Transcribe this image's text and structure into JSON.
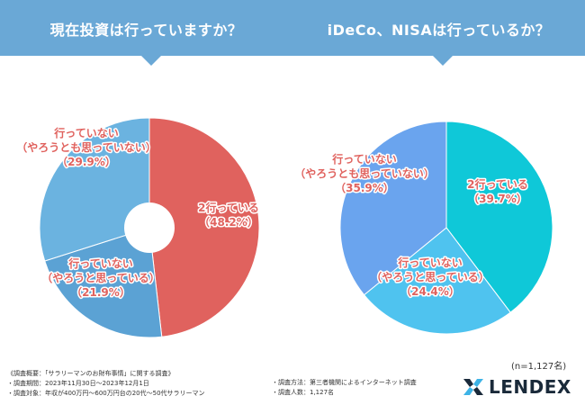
{
  "chart_data": [
    {
      "type": "pie",
      "title": "現在投資は行っていますか？",
      "donut": true,
      "slices": [
        {
          "label_lines": [
            "2行っている",
            "（48.2%）"
          ],
          "value": 48.2,
          "color": "#e0625e"
        },
        {
          "label_lines": [
            "行っていない",
            "（やろうと思っている）",
            "（21.9%）"
          ],
          "value": 21.9,
          "color": "#5ba2d4"
        },
        {
          "label_lines": [
            "行っていない",
            "（やろうとも思っていない）",
            "（29.9%）"
          ],
          "value": 29.9,
          "color": "#6bb3e0"
        }
      ]
    },
    {
      "type": "pie",
      "title": "iDeCo、NISAは行っているか？",
      "donut": false,
      "slices": [
        {
          "label_lines": [
            "2行っている",
            "（39.7%）"
          ],
          "value": 39.7,
          "color": "#0fc8d8"
        },
        {
          "label_lines": [
            "行っていない",
            "（やろうと思っている）",
            "（24.4%）"
          ],
          "value": 24.4,
          "color": "#4fc3ef"
        },
        {
          "label_lines": [
            "行っていない",
            "（やろうとも思っていない）",
            "（35.9%）"
          ],
          "value": 35.9,
          "color": "#6aa4ee"
        }
      ]
    }
  ],
  "label_color": "#e0625e",
  "sample_size": "(n=1,127名)",
  "notes_left": [
    "《調査概要：「サラリーマンのお財布事情」に関する調査》",
    "・調査期間：2023年11月30日〜2023年12月1日",
    "・調査対象：年収が400万円〜600万円台の20代〜50代サラリーマン"
  ],
  "notes_right": [
    "・調査方法：第三者機関によるインターネット調査",
    "・調査人数：1,127名"
  ],
  "logo": {
    "text": "LENDEX",
    "icon": "lendex-mark-icon"
  }
}
